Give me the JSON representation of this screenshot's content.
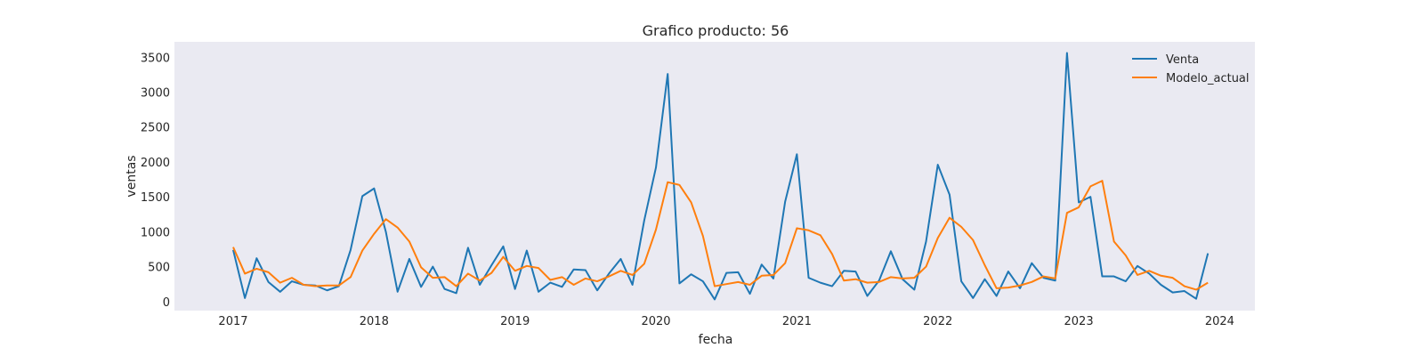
{
  "chart_data": {
    "type": "line",
    "title": "Grafico producto: 56",
    "xlabel": "fecha",
    "ylabel": "ventas",
    "x_start": "2017-01",
    "x_frequency": "monthly",
    "x": [
      "2017-01",
      "2017-02",
      "2017-03",
      "2017-04",
      "2017-05",
      "2017-06",
      "2017-07",
      "2017-08",
      "2017-09",
      "2017-10",
      "2017-11",
      "2017-12",
      "2018-01",
      "2018-02",
      "2018-03",
      "2018-04",
      "2018-05",
      "2018-06",
      "2018-07",
      "2018-08",
      "2018-09",
      "2018-10",
      "2018-11",
      "2018-12",
      "2019-01",
      "2019-02",
      "2019-03",
      "2019-04",
      "2019-05",
      "2019-06",
      "2019-07",
      "2019-08",
      "2019-09",
      "2019-10",
      "2019-11",
      "2019-12",
      "2020-01",
      "2020-02",
      "2020-03",
      "2020-04",
      "2020-05",
      "2020-06",
      "2020-07",
      "2020-08",
      "2020-09",
      "2020-10",
      "2020-11",
      "2020-12",
      "2021-01",
      "2021-02",
      "2021-03",
      "2021-04",
      "2021-05",
      "2021-06",
      "2021-07",
      "2021-08",
      "2021-09",
      "2021-10",
      "2021-11",
      "2021-12",
      "2022-01",
      "2022-02",
      "2022-03",
      "2022-04",
      "2022-05",
      "2022-06",
      "2022-07",
      "2022-08",
      "2022-09",
      "2022-10",
      "2022-11",
      "2022-12",
      "2023-01",
      "2023-02",
      "2023-03",
      "2023-04",
      "2023-05",
      "2023-06",
      "2023-07",
      "2023-08",
      "2023-09",
      "2023-10",
      "2023-11",
      "2023-12"
    ],
    "x_ticks": [
      "2017",
      "2018",
      "2019",
      "2020",
      "2021",
      "2022",
      "2023",
      "2024"
    ],
    "y_ticks": [
      0,
      500,
      1000,
      1500,
      2000,
      2500,
      3000,
      3500
    ],
    "ylim": [
      -130,
      3720
    ],
    "xlim": [
      "2016-08",
      "2024-04"
    ],
    "grid": false,
    "background": "#eaeaf2",
    "legend_position": "top-right",
    "series": [
      {
        "name": "Venta",
        "color": "#1f77b4",
        "values": [
          740,
          50,
          620,
          280,
          140,
          290,
          240,
          230,
          160,
          220,
          740,
          1510,
          1620,
          1000,
          140,
          610,
          210,
          500,
          180,
          120,
          770,
          240,
          520,
          790,
          180,
          730,
          140,
          270,
          210,
          460,
          450,
          160,
          400,
          610,
          240,
          1160,
          1920,
          3260,
          260,
          390,
          290,
          30,
          410,
          420,
          110,
          530,
          330,
          1430,
          2110,
          340,
          270,
          220,
          440,
          430,
          80,
          300,
          720,
          320,
          170,
          860,
          1960,
          1530,
          290,
          50,
          320,
          80,
          430,
          190,
          550,
          340,
          300,
          3560,
          1420,
          1500,
          360,
          360,
          290,
          510,
          400,
          240,
          130,
          150,
          40,
          690
        ]
      },
      {
        "name": "Modelo_actual",
        "color": "#ff7f0e",
        "values": [
          780,
          400,
          470,
          420,
          270,
          340,
          240,
          220,
          230,
          230,
          350,
          730,
          970,
          1180,
          1060,
          860,
          490,
          340,
          350,
          220,
          400,
          300,
          410,
          640,
          440,
          510,
          480,
          310,
          350,
          240,
          330,
          290,
          360,
          440,
          380,
          540,
          1030,
          1710,
          1670,
          1420,
          940,
          220,
          250,
          280,
          240,
          370,
          380,
          550,
          1050,
          1020,
          950,
          680,
          300,
          320,
          270,
          280,
          350,
          330,
          340,
          500,
          910,
          1200,
          1070,
          880,
          520,
          190,
          200,
          230,
          280,
          360,
          330,
          1270,
          1350,
          1650,
          1730,
          860,
          660,
          380,
          440,
          370,
          340,
          220,
          170,
          270
        ]
      }
    ]
  }
}
